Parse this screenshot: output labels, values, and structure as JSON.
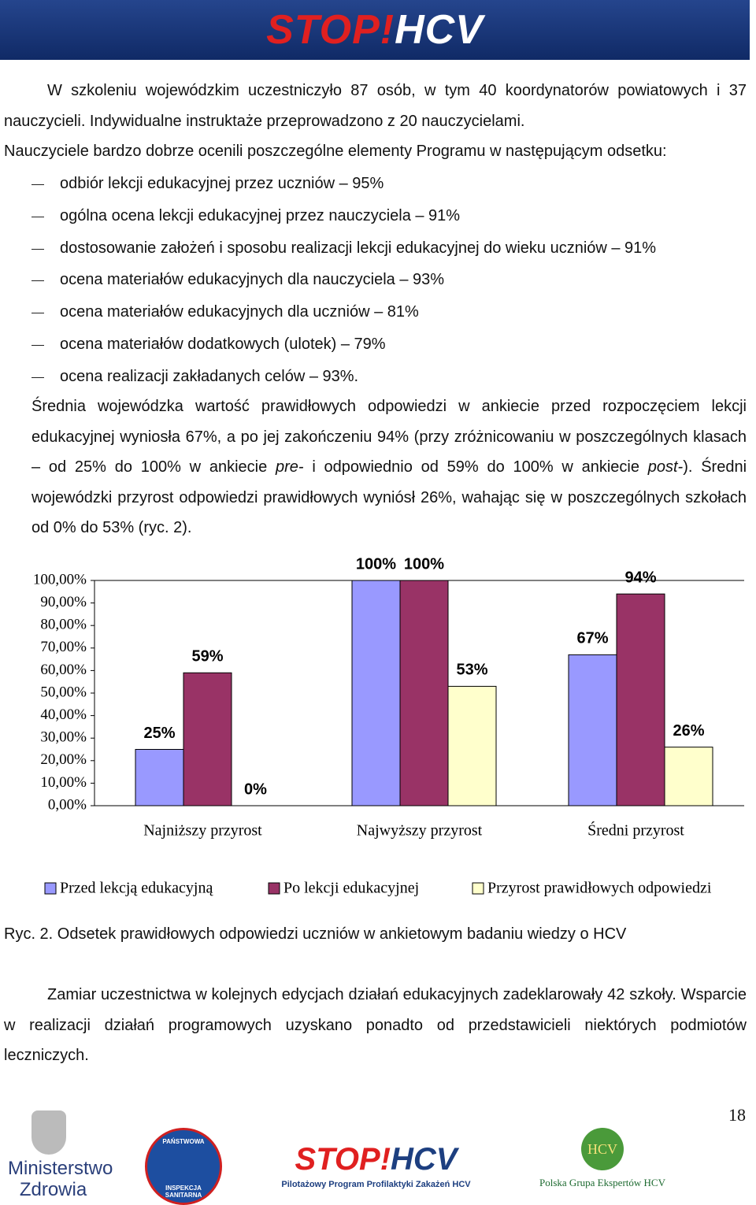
{
  "header": {
    "logo_stop": "STOP!",
    "logo_hcv": "HCV"
  },
  "paragraphs": [
    "W szkoleniu wojewódzkim uczestniczyło 87 osób, w tym 40 koordynatorów powiatowych i 37 nauczycieli. Indywidualne instruktaże przeprowadzono z 20 nauczycielami.",
    "Nauczyciele bardzo dobrze ocenili poszczególne elementy Programu w następującym odsetku:"
  ],
  "list": [
    "odbiór lekcji edukacyjnej przez uczniów – 95%",
    "ogólna ocena lekcji edukacyjnej przez nauczyciela – 91%",
    "dostosowanie założeń i sposobu realizacji lekcji edukacyjnej do wieku uczniów – 91%",
    "ocena materiałów edukacyjnych dla nauczyciela – 93%",
    "ocena materiałów edukacyjnych dla uczniów – 81%",
    "ocena materiałów dodatkowych (ulotek) – 79%",
    "ocena realizacji zakładanych celów – 93%."
  ],
  "summary": [
    "Średnia wojewódzka wartość prawidłowych odpowiedzi w ankiecie przed rozpoczęciem lekcji edukacyjnej wyniosła 67%, a po jej zakończeniu 94% (przy zróżnicowaniu w poszczególnych klasach – od 25% do 100% w ankiecie ",
    "pre-",
    " i odpowiednio od 59% do 100% w ankiecie ",
    "post-",
    "). Średni wojewódzki przyrost odpowiedzi prawidłowych wyniósł 26%, wahając się w poszczególnych szkołach od 0% do 53% (ryc. 2)."
  ],
  "chart_data": {
    "type": "bar",
    "categories": [
      "Najniższy przyrost",
      "Najwyższy przyrost",
      "Średni przyrost"
    ],
    "series": [
      {
        "name": "Przed lekcją edukacyjną",
        "color": "#9999ff",
        "values": [
          25,
          100,
          67
        ],
        "value_labels": [
          "25%",
          "100%",
          "67%"
        ]
      },
      {
        "name": "Po lekcji edukacyjnej",
        "color": "#993366",
        "values": [
          59,
          100,
          94
        ],
        "value_labels": [
          "59%",
          "100%",
          "94%"
        ]
      },
      {
        "name": "Przyrost prawidłowych odpowiedzi",
        "color": "#ffffcc",
        "values": [
          0,
          53,
          26
        ],
        "value_labels": [
          "0%",
          "53%",
          "26%"
        ]
      }
    ],
    "ylim": [
      0,
      100
    ],
    "yticks": [
      {
        "value": 0,
        "label": "0,00%"
      },
      {
        "value": 10,
        "label": "10,00%"
      },
      {
        "value": 20,
        "label": "20,00%"
      },
      {
        "value": 30,
        "label": "30,00%"
      },
      {
        "value": 40,
        "label": "40,00%"
      },
      {
        "value": 50,
        "label": "50,00%"
      },
      {
        "value": 60,
        "label": "60,00%"
      },
      {
        "value": 70,
        "label": "70,00%"
      },
      {
        "value": 80,
        "label": "80,00%"
      },
      {
        "value": 90,
        "label": "90,00%"
      },
      {
        "value": 100,
        "label": "100,00%"
      }
    ],
    "grid": false,
    "legend": "bottom"
  },
  "caption": "Ryc. 2. Odsetek prawidłowych odpowiedzi uczniów w ankietowym badaniu wiedzy o HCV",
  "closing": "Zamiar uczestnictwa w kolejnych edycjach działań edukacyjnych zadeklarowały 42 szkoły. Wsparcie w realizacji działań programowych uzyskano ponadto od przedstawicieli niektórych podmiotów leczniczych.",
  "page_number": "18",
  "footer": {
    "ministry_1": "Ministerstwo",
    "ministry_2": "Zdrowia",
    "pis_1": "PAŃSTWOWA",
    "pis_2": "INSPEKCJA SANITARNA",
    "stop": "STOP!",
    "hcv": "HCV",
    "program": "Pilotażowy Program Profilaktyki Zakażeń HCV",
    "pge_logo": "HCV",
    "pge": "Polska Grupa Ekspertów HCV"
  }
}
